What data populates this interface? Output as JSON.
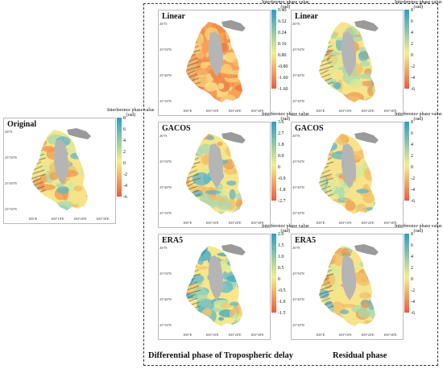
{
  "labels": {
    "lat": [
      "26°N",
      "25°50'N",
      "25°40'N",
      "25°30'N"
    ],
    "lon": [
      "100°E",
      "100°10'E",
      "100°20'E",
      "100°30'E"
    ]
  },
  "colorbar": {
    "title_line1": "Interference phase value",
    "title_line2": "(rad)"
  },
  "panels": [
    {
      "id": "original",
      "title": "Original",
      "ticks": [
        "8",
        "6",
        "4",
        "2",
        "0",
        "-2",
        "-4",
        "-6"
      ],
      "tint": "mixed"
    },
    {
      "id": "tropo-linear",
      "title": "Linear",
      "ticks": [
        "0.40",
        "0.32",
        "0.24",
        "0.16",
        "0.80",
        "-0.80",
        "-1.60",
        "-1.60"
      ],
      "tint": "warm"
    },
    {
      "id": "resid-linear",
      "title": "Linear",
      "ticks": [
        "8",
        "6",
        "4",
        "2",
        "0",
        "-2",
        "-4",
        "-6"
      ],
      "tint": "mixed"
    },
    {
      "id": "tropo-gacos",
      "title": "GACOS",
      "ticks": [
        "3.6",
        "2.7",
        "1.8",
        "0.9",
        "0",
        "-0.9",
        "-1.8",
        "-2.7"
      ],
      "tint": "mixed"
    },
    {
      "id": "resid-gacos",
      "title": "GACOS",
      "ticks": [
        "8",
        "6",
        "4",
        "2",
        "0",
        "-2",
        "-4",
        "-6"
      ],
      "tint": "mixed"
    },
    {
      "id": "tropo-era5",
      "title": "ERA5",
      "ticks": [
        "2.0",
        "1.5",
        "1.0",
        "0.5",
        "0",
        "-0.5",
        "-1.0",
        "-1.5"
      ],
      "tint": "cool"
    },
    {
      "id": "resid-era5",
      "title": "ERA5",
      "ticks": [
        "8",
        "6",
        "4",
        "2",
        "0",
        "-2",
        "-4",
        "-6"
      ],
      "tint": "mixed"
    }
  ],
  "captions": {
    "tropospheric": "Differential phase of Tropospheric delay",
    "residual": "Residual phase"
  },
  "colors": {
    "cb_top": "#2a9fc6",
    "cb_mid": "#f4ef8c",
    "cb_bottom": "#f05a3c",
    "lake": "#b5b5b5",
    "mountain": "#9a9a9a"
  }
}
